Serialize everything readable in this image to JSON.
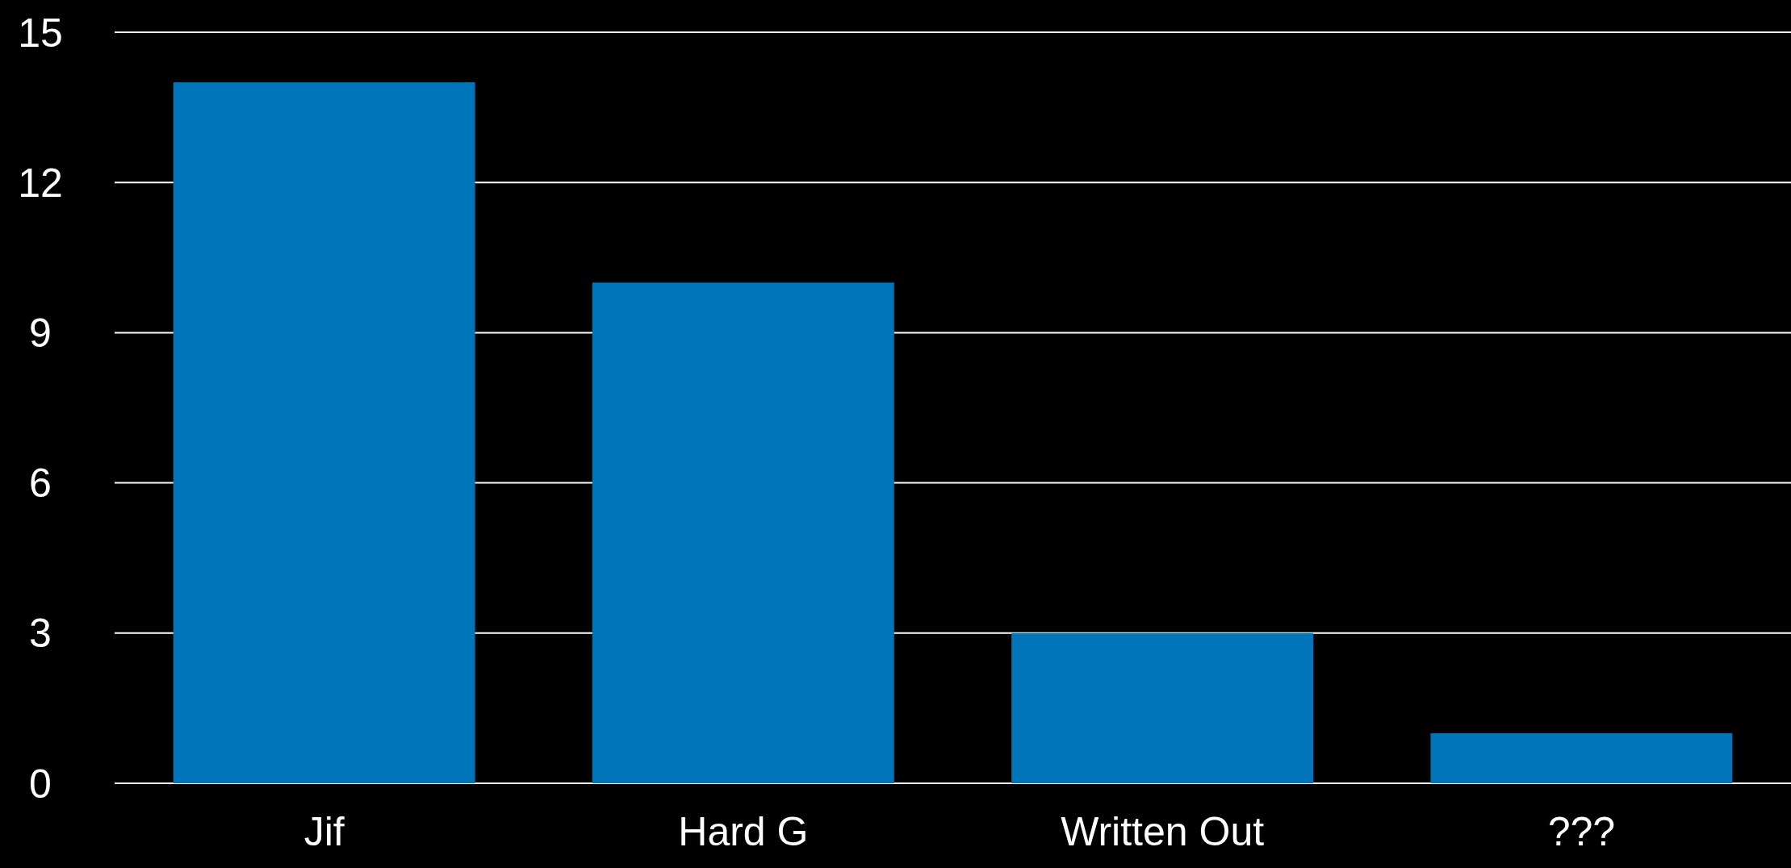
{
  "chart_data": {
    "type": "bar",
    "categories": [
      "Jif",
      "Hard G",
      "Written Out",
      "???"
    ],
    "values": [
      14,
      10,
      3,
      1
    ],
    "color": "#0075b9",
    "ylim": [
      0,
      15
    ],
    "yticks": [
      0,
      3,
      6,
      9,
      12,
      15
    ],
    "grid": "y"
  }
}
